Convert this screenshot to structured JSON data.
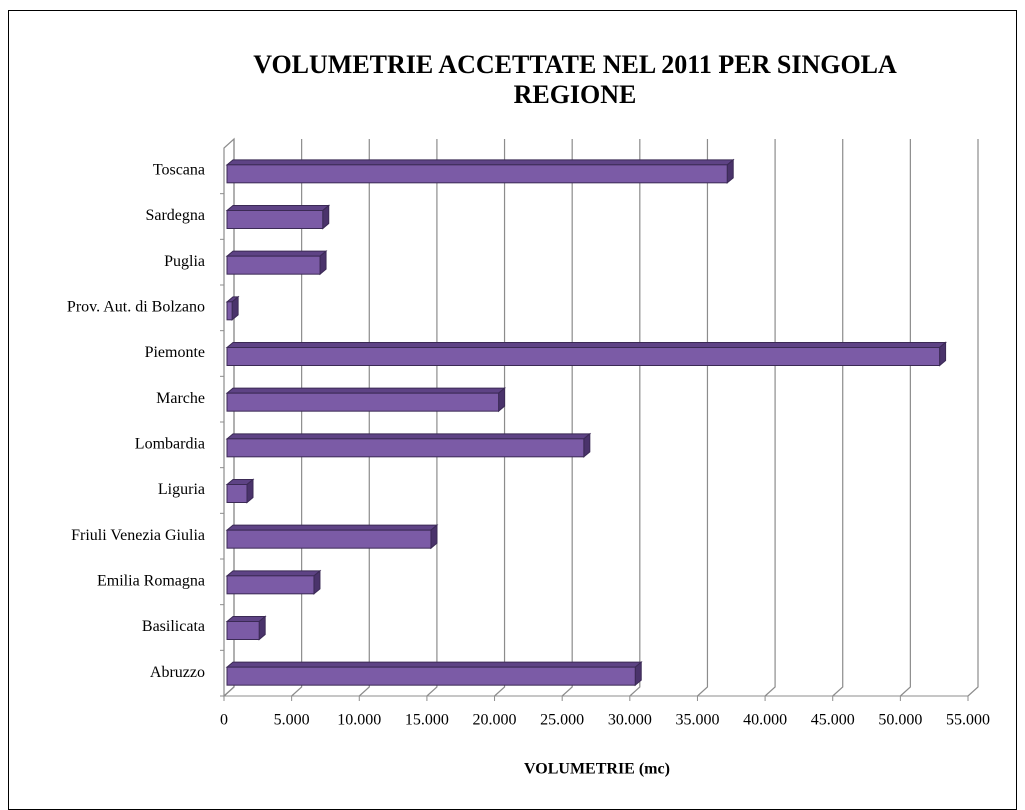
{
  "chart_data": {
    "type": "bar",
    "orientation": "horizontal",
    "title": "VOLUMETRIE ACCETTATE NEL 2011 PER SINGOLA REGIONE",
    "x_label": "VOLUMETRIE (mc)",
    "categories": [
      "Abruzzo",
      "Basilicata",
      "Emilia Romagna",
      "Friuli Venezia Giulia",
      "Liguria",
      "Lombardia",
      "Marche",
      "Piemonte",
      "Prov. Aut. di Bolzano",
      "Puglia",
      "Sardegna",
      "Toscana"
    ],
    "values": [
      30400,
      2600,
      6650,
      15300,
      1700,
      26600,
      20300,
      52900,
      600,
      7100,
      7300,
      37200
    ],
    "color": "#7b5ba6",
    "xlim": [
      0,
      55000
    ],
    "xticks": [
      0,
      {
        "value": 5000,
        "label": "5.000"
      },
      {
        "value": 10000,
        "label": "10.000"
      },
      {
        "value": 15000,
        "label": "15.000"
      },
      {
        "value": 20000,
        "label": "20.000"
      },
      {
        "value": 25000,
        "label": "25.000"
      },
      {
        "value": 30000,
        "label": "30.000"
      },
      {
        "value": 35000,
        "label": "35.000"
      },
      {
        "value": 40000,
        "label": "40.000"
      },
      {
        "value": 45000,
        "label": "45.000"
      },
      {
        "value": 50000,
        "label": "50.000"
      },
      {
        "value": 55000,
        "label": "55.000"
      }
    ],
    "grid": true
  }
}
